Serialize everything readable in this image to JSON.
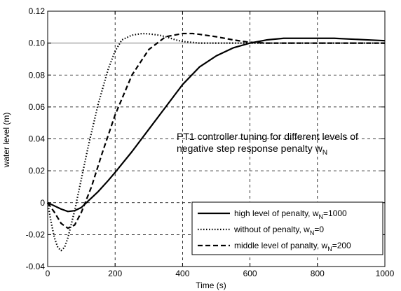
{
  "chart_data": {
    "type": "line",
    "xlabel": "Time (s)",
    "ylabel": "water level (m)",
    "xlim": [
      0,
      1000
    ],
    "ylim": [
      -0.04,
      0.12
    ],
    "xticks": [
      "0",
      "200",
      "400",
      "600",
      "800",
      "1000"
    ],
    "yticks": [
      "-0.04",
      "-0.02",
      "0",
      "0.02",
      "0.04",
      "0.06",
      "0.08",
      "0.10",
      "0.12"
    ],
    "grid": true,
    "legend_position": "bottom-right",
    "annotation": {
      "line1": "PT1 controller tuning for different levels of",
      "line2_main": "negative step response penalty w",
      "line2_sub": "N"
    },
    "reference": {
      "color": "#c8c8c8",
      "x": [
        0,
        0,
        1000
      ],
      "y": [
        0,
        0.1,
        0.1
      ]
    },
    "series": [
      {
        "name": "high level of penalty, w",
        "sub": "N",
        "suffix": "=1000",
        "style": "solid",
        "color": "#000000",
        "x": [
          0,
          20,
          40,
          60,
          80,
          100,
          120,
          150,
          180,
          200,
          250,
          300,
          350,
          400,
          450,
          500,
          550,
          600,
          650,
          700,
          750,
          800,
          850,
          900,
          950,
          1000
        ],
        "y": [
          0,
          -0.002,
          -0.004,
          -0.0055,
          -0.005,
          -0.003,
          0.001,
          0.007,
          0.014,
          0.019,
          0.032,
          0.046,
          0.06,
          0.074,
          0.085,
          0.092,
          0.097,
          0.1,
          0.102,
          0.103,
          0.103,
          0.103,
          0.103,
          0.1025,
          0.102,
          0.1015
        ]
      },
      {
        "name": "without of penalty, w",
        "sub": "N",
        "suffix": "=0",
        "style": "dotted",
        "color": "#000000",
        "x": [
          0,
          10,
          20,
          30,
          40,
          50,
          60,
          80,
          100,
          120,
          150,
          180,
          200,
          220,
          250,
          280,
          300,
          330,
          350,
          380,
          400,
          450,
          500,
          600,
          700,
          800,
          900,
          1000
        ],
        "y": [
          0,
          -0.012,
          -0.022,
          -0.028,
          -0.03,
          -0.028,
          -0.022,
          -0.005,
          0.015,
          0.035,
          0.062,
          0.084,
          0.095,
          0.102,
          0.105,
          0.106,
          0.1058,
          0.105,
          0.104,
          0.102,
          0.101,
          0.1,
          0.1,
          0.1,
          0.1,
          0.1,
          0.1,
          0.1
        ]
      },
      {
        "name": "middle level of panalty, w",
        "sub": "N",
        "suffix": "=200",
        "style": "dashed",
        "color": "#000000",
        "x": [
          0,
          20,
          40,
          60,
          80,
          100,
          130,
          160,
          200,
          250,
          300,
          350,
          400,
          430,
          450,
          500,
          550,
          600,
          650,
          700,
          800,
          900,
          1000
        ],
        "y": [
          0,
          -0.006,
          -0.013,
          -0.016,
          -0.014,
          -0.006,
          0.01,
          0.03,
          0.055,
          0.08,
          0.096,
          0.104,
          0.106,
          0.106,
          0.1055,
          0.104,
          0.102,
          0.1005,
          0.1,
          0.1,
          0.1,
          0.1,
          0.1
        ]
      }
    ]
  }
}
